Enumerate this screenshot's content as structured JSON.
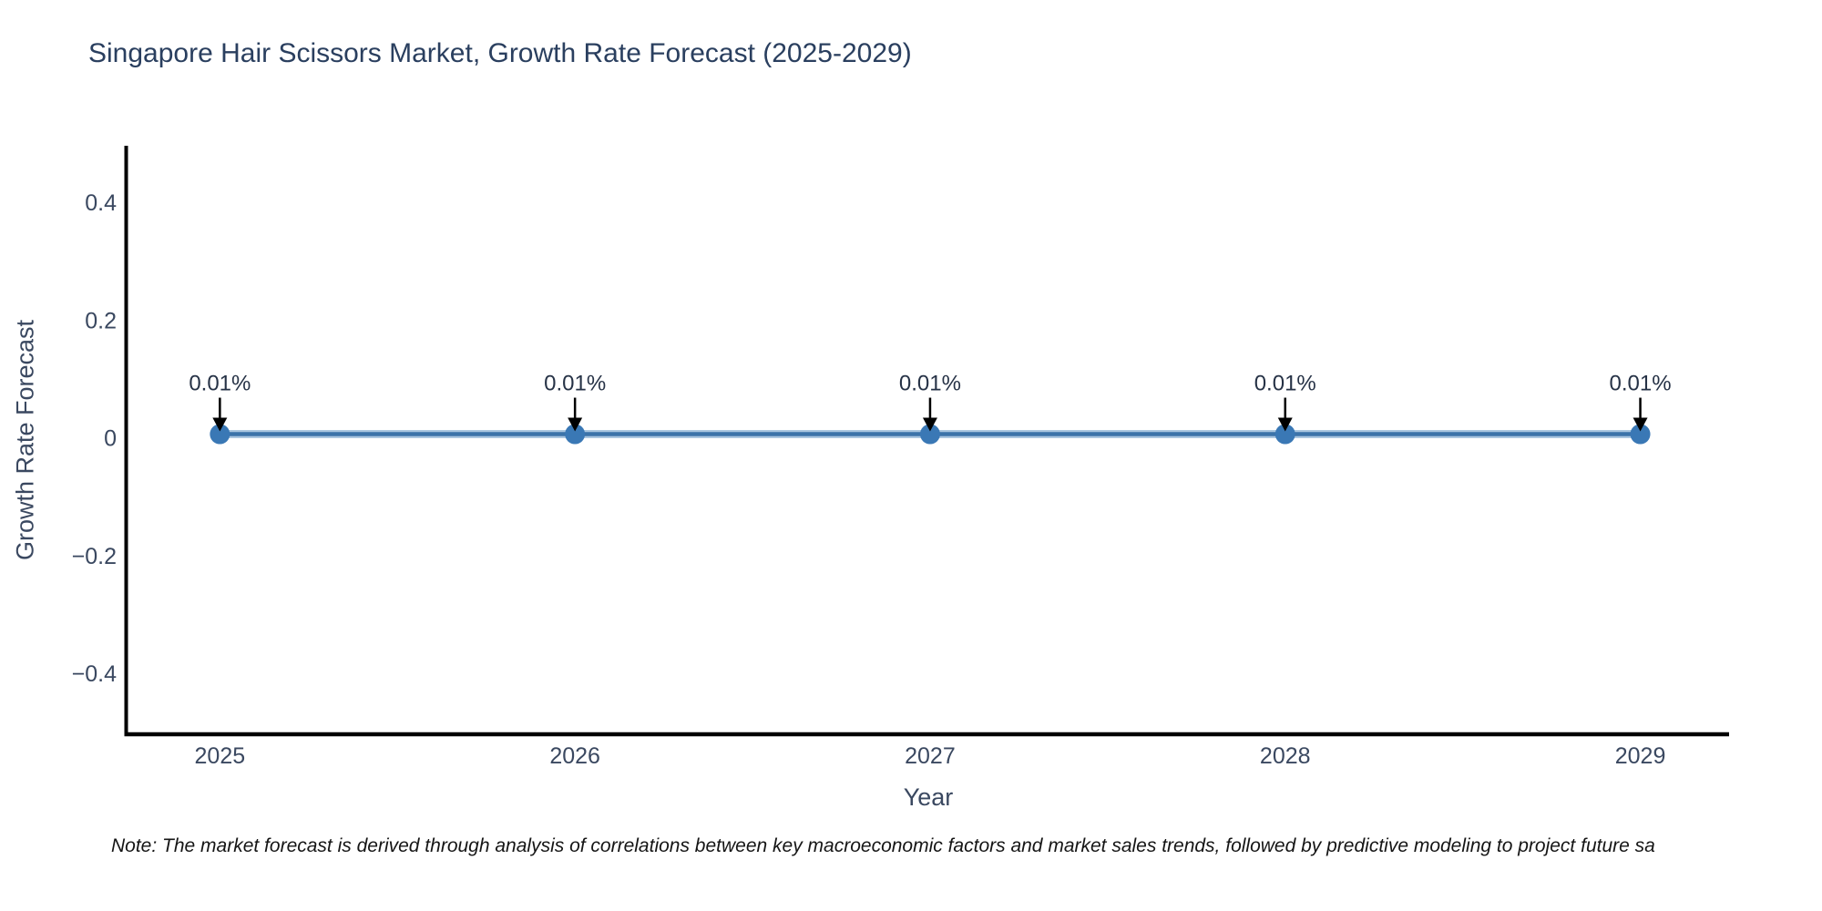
{
  "page": {
    "background": "#ffffff"
  },
  "note": "Note: The market forecast is derived through analysis of correlations between key macroeconomic factors and market sales trends, followed by predictive modeling to project future sa",
  "chart_data": {
    "type": "line",
    "title": "Singapore Hair Scissors Market, Growth Rate Forecast (2025-2029)",
    "xlabel": "Year",
    "ylabel": "Growth Rate Forecast",
    "x": [
      2025,
      2026,
      2027,
      2028,
      2029
    ],
    "y": [
      0.01,
      0.01,
      0.01,
      0.01,
      0.01
    ],
    "point_labels": [
      "0.01%",
      "0.01%",
      "0.01%",
      "0.01%",
      "0.01%"
    ],
    "xticks": [
      {
        "value": 2025,
        "label": "2025"
      },
      {
        "value": 2026,
        "label": "2026"
      },
      {
        "value": 2027,
        "label": "2027"
      },
      {
        "value": 2028,
        "label": "2028"
      },
      {
        "value": 2029,
        "label": "2029"
      }
    ],
    "yticks": [
      {
        "value": -0.4,
        "label": "−0.4"
      },
      {
        "value": -0.2,
        "label": "−0.2"
      },
      {
        "value": 0,
        "label": "0"
      },
      {
        "value": 0.2,
        "label": "0.2"
      },
      {
        "value": 0.4,
        "label": "0.4"
      }
    ],
    "xlim": [
      2024.74,
      2029.25
    ],
    "ylim": [
      -0.5,
      0.5
    ],
    "grid": false,
    "legend": "none",
    "colors": {
      "line": "#3c73a9",
      "line_halo": "#8fb4d6",
      "marker": "#3a78b5",
      "annotation_text": "#263246",
      "annotation_arrow": "#000000",
      "axis": "#000000",
      "tick_text": "#3a4860",
      "title": "#2a3f5f"
    }
  }
}
